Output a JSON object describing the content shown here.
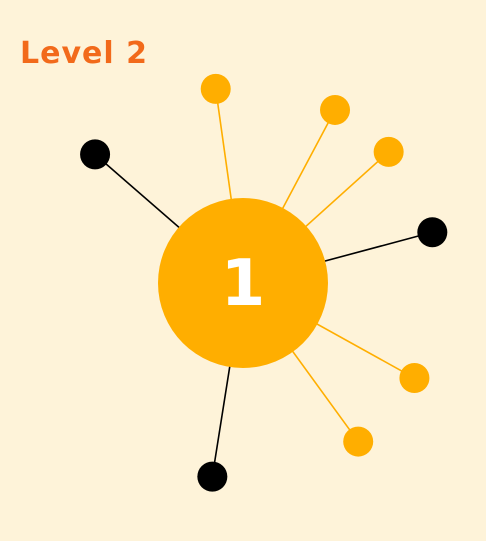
{
  "level": {
    "label": "Level 2"
  },
  "hub": {
    "count_label": "1"
  },
  "pins": [
    {
      "angle_deg": 221,
      "state": "pending"
    },
    {
      "angle_deg": 262,
      "state": "placed"
    },
    {
      "angle_deg": 298,
      "state": "placed"
    },
    {
      "angle_deg": 318,
      "state": "placed"
    },
    {
      "angle_deg": 345,
      "state": "pending"
    },
    {
      "angle_deg": 29,
      "state": "placed"
    },
    {
      "angle_deg": 54,
      "state": "placed"
    },
    {
      "angle_deg": 99,
      "state": "pending"
    }
  ],
  "colors": {
    "background": "#FEF3D9",
    "accent": "#FFAE00",
    "level_text": "#F26A1B",
    "pending_pin": "#000000",
    "hub_text": "#FFFFFF"
  }
}
